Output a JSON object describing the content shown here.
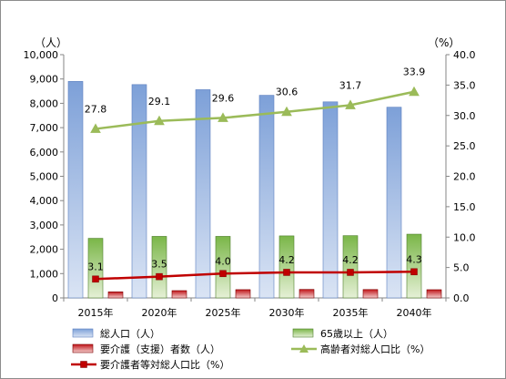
{
  "chart_data": {
    "type": "bar",
    "categories": [
      "2015年",
      "2020年",
      "2025年",
      "2030年",
      "2035年",
      "2040年"
    ],
    "left_axis": {
      "unit": "（人）",
      "ylim": [
        0,
        10000
      ],
      "ticks": [
        "0",
        "1,000",
        "2,000",
        "3,000",
        "4,000",
        "5,000",
        "6,000",
        "7,000",
        "8,000",
        "9,000",
        "10,000"
      ]
    },
    "right_axis": {
      "unit": "（%）",
      "ylim": [
        0,
        40
      ],
      "ticks": [
        "0.0",
        "5.0",
        "10.0",
        "15.0",
        "20.0",
        "25.0",
        "30.0",
        "35.0",
        "40.0"
      ]
    },
    "series": [
      {
        "name": "総人口（人）",
        "kind": "bar",
        "axis": "left",
        "color": "#8eaadb",
        "values": [
          8900,
          8770,
          8560,
          8330,
          8060,
          7840
        ]
      },
      {
        "name": "65歳以上（人）",
        "kind": "bar",
        "axis": "left",
        "color": "#70ad47",
        "values": [
          2450,
          2530,
          2530,
          2550,
          2560,
          2620
        ]
      },
      {
        "name": "要介護（支援）者数（人）",
        "kind": "bar",
        "axis": "left",
        "color": "#c00000",
        "values": [
          250,
          300,
          340,
          350,
          345,
          338
        ]
      },
      {
        "name": "高齢者対総人口比（%）",
        "kind": "line",
        "axis": "right",
        "color": "#9bbb59",
        "marker": "triangle",
        "values": [
          27.8,
          29.1,
          29.6,
          30.6,
          31.7,
          33.9
        ],
        "labels": [
          "27.8",
          "29.1",
          "29.6",
          "30.6",
          "31.7",
          "33.9"
        ]
      },
      {
        "name": "要介護者等対総人口比（%）",
        "kind": "line",
        "axis": "right",
        "color": "#c00000",
        "marker": "square",
        "values": [
          3.1,
          3.5,
          4.0,
          4.2,
          4.2,
          4.3
        ],
        "labels": [
          "3.1",
          "3.5",
          "4.0",
          "4.2",
          "4.2",
          "4.3"
        ]
      }
    ],
    "legend_position": "bottom",
    "grid": false
  }
}
